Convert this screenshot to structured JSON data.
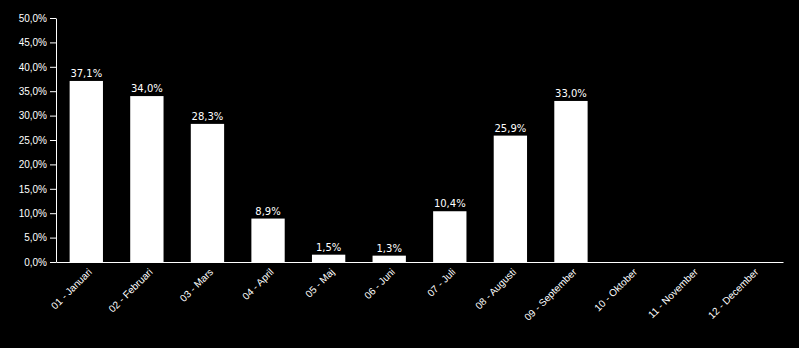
{
  "chart_data": {
    "type": "bar",
    "categories": [
      "01 - Januari",
      "02 - Februari",
      "03 - Mars",
      "04 - April",
      "05 - Maj",
      "06 - Juni",
      "07 - Juli",
      "08 - Augusti",
      "09 - September",
      "10 - Oktober",
      "11 - November",
      "12 - December"
    ],
    "values": [
      37.1,
      34.0,
      28.3,
      8.9,
      1.5,
      1.3,
      10.4,
      25.9,
      33.0,
      0.0,
      0.0,
      0.0
    ],
    "value_labels": [
      "37,1%",
      "34,0%",
      "28,3%",
      "8,9%",
      "1,5%",
      "1,3%",
      "10,4%",
      "25,9%",
      "33,0%",
      null,
      null,
      null
    ],
    "data_labels": true,
    "color": "#ffffff",
    "ylim": [
      0,
      50
    ],
    "yticks": [
      {
        "value": 0,
        "label": "0,0%"
      },
      {
        "value": 5,
        "label": "5,0%"
      },
      {
        "value": 10,
        "label": "10,0%"
      },
      {
        "value": 15,
        "label": "15,0%"
      },
      {
        "value": 20,
        "label": "20,0%"
      },
      {
        "value": 25,
        "label": "25,0%"
      },
      {
        "value": 30,
        "label": "30,0%"
      },
      {
        "value": 35,
        "label": "35,0%"
      },
      {
        "value": 40,
        "label": "40,0%"
      },
      {
        "value": 45,
        "label": "45,0%"
      },
      {
        "value": 50,
        "label": "50,0%"
      }
    ],
    "grid": false
  }
}
